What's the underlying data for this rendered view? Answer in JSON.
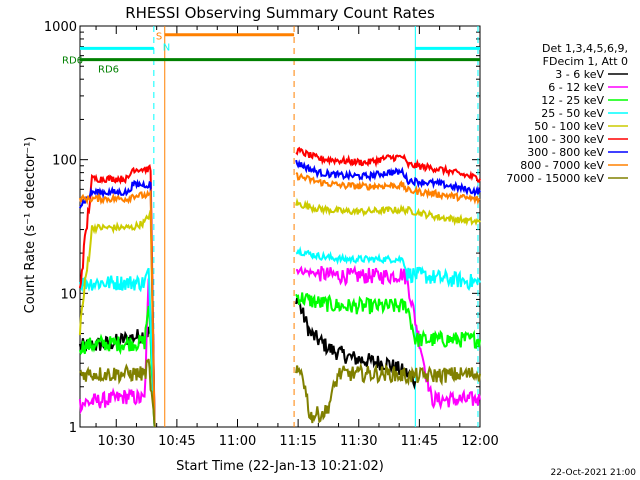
{
  "chart_data": {
    "type": "line",
    "title": "RHESSI Observing Summary Count Rates",
    "xlabel": "Start Time (22-Jan-13 10:21:02)",
    "ylabel": "Count Rate (s⁻¹ detector⁻¹)",
    "ylim": [
      1,
      1000
    ],
    "yscale": "log",
    "xlim_minutes": [
      21.03,
      120
    ],
    "x_ticks": [
      {
        "value": 30,
        "label": "10:30"
      },
      {
        "value": 45,
        "label": "10:45"
      },
      {
        "value": 60,
        "label": "11:00"
      },
      {
        "value": 75,
        "label": "11:15"
      },
      {
        "value": 90,
        "label": "11:30"
      },
      {
        "value": 105,
        "label": "11:45"
      },
      {
        "value": 120,
        "label": "12:00"
      }
    ],
    "y_ticks": [
      {
        "value": 1,
        "label": "1"
      },
      {
        "value": 10,
        "label": "10"
      },
      {
        "value": 100,
        "label": "100"
      },
      {
        "value": 1000,
        "label": "1000"
      }
    ],
    "legend": {
      "placement": "right",
      "header": [
        "Det 1,3,4,5,6,9,",
        "FDecim 1, Att 0"
      ]
    },
    "footer_stamp": "22-Oct-2021 21:00",
    "series": [
      {
        "name": "3 - 6 keV",
        "color": "#000000",
        "segments": [
          [
            [
              21.0,
              4.0
            ],
            [
              28,
              4.2
            ],
            [
              33,
              4.6
            ],
            [
              37,
              4.9
            ],
            [
              38.5,
              5.3
            ],
            [
              39.5,
              1.0
            ]
          ],
          [
            [
              74.5,
              9.5
            ],
            [
              78,
              5.0
            ],
            [
              83,
              3.8
            ],
            [
              88,
              3.3
            ],
            [
              93,
              3.1
            ],
            [
              97,
              3.0
            ],
            [
              102,
              2.5
            ],
            [
              104,
              2.2
            ]
          ]
        ]
      },
      {
        "name": "6 - 12 keV",
        "color": "#ff00ff",
        "segments": [
          [
            [
              21.0,
              1.5
            ],
            [
              28,
              1.6
            ],
            [
              33,
              1.7
            ],
            [
              37,
              1.6
            ],
            [
              38,
              12.0
            ],
            [
              39.5,
              1.0
            ]
          ],
          [
            [
              74.5,
              15.0
            ],
            [
              80,
              14.0
            ],
            [
              86,
              13.5
            ],
            [
              92,
              13.5
            ],
            [
              98,
              13.5
            ],
            [
              101,
              14.0
            ],
            [
              102,
              12.5
            ],
            [
              108,
              1.6
            ],
            [
              120,
              1.6
            ]
          ]
        ]
      },
      {
        "name": "12 - 25 keV",
        "color": "#00ff00",
        "segments": [
          [
            [
              21.0,
              4.0
            ],
            [
              26,
              4.2
            ],
            [
              32,
              4.2
            ],
            [
              37,
              4.3
            ],
            [
              38,
              8.5
            ],
            [
              39.5,
              1.0
            ]
          ],
          [
            [
              74.5,
              9.5
            ],
            [
              80,
              8.5
            ],
            [
              86,
              8.0
            ],
            [
              92,
              8.0
            ],
            [
              98,
              8.0
            ],
            [
              102,
              8.0
            ],
            [
              104,
              4.5
            ],
            [
              110,
              4.5
            ],
            [
              120,
              4.5
            ]
          ]
        ]
      },
      {
        "name": "25 - 50 keV",
        "color": "#00ffff",
        "segments": [
          [
            [
              21.0,
              12.0
            ],
            [
              26,
              12.0
            ],
            [
              32,
              12.0
            ],
            [
              37,
              12.0
            ],
            [
              38,
              15.0
            ],
            [
              39.5,
              1.0
            ]
          ],
          [
            [
              74.5,
              21.0
            ],
            [
              80,
              19.0
            ],
            [
              86,
              18.0
            ],
            [
              92,
              18.0
            ],
            [
              98,
              18.0
            ],
            [
              101,
              18.0
            ],
            [
              102,
              14.0
            ],
            [
              110,
              13.0
            ],
            [
              120,
              12.0
            ]
          ]
        ]
      },
      {
        "name": "50 - 100 keV",
        "color": "#cccc00",
        "segments": [
          [
            [
              21.0,
              5.5
            ],
            [
              24,
              31.0
            ],
            [
              30,
              31.0
            ],
            [
              34,
              31.0
            ],
            [
              37,
              34.0
            ],
            [
              38.5,
              40.0
            ],
            [
              39.5,
              1.0
            ]
          ],
          [
            [
              74.5,
              47.0
            ],
            [
              80,
              43.0
            ],
            [
              86,
              41.0
            ],
            [
              92,
              41.0
            ],
            [
              98,
              42.0
            ],
            [
              102,
              42.0
            ],
            [
              110,
              37.0
            ],
            [
              120,
              34.0
            ]
          ]
        ]
      },
      {
        "name": "100 - 300 keV",
        "color": "#ff0000",
        "segments": [
          [
            [
              21.0,
              11.0
            ],
            [
              24,
              72.0
            ],
            [
              30,
              72.0
            ],
            [
              33,
              72.0
            ],
            [
              34,
              85.0
            ],
            [
              38.5,
              85.0
            ],
            [
              39.5,
              1.0
            ]
          ],
          [
            [
              74.5,
              118.0
            ],
            [
              80,
              102.0
            ],
            [
              86,
              98.0
            ],
            [
              92,
              95.0
            ],
            [
              97,
              103.0
            ],
            [
              101,
              105.0
            ],
            [
              102,
              92.0
            ],
            [
              110,
              85.0
            ],
            [
              120,
              72.0
            ]
          ]
        ]
      },
      {
        "name": "300 - 800 keV",
        "color": "#0000ff",
        "segments": [
          [
            [
              21.0,
              45.0
            ],
            [
              24,
              57.0
            ],
            [
              30,
              57.0
            ],
            [
              33,
              57.0
            ],
            [
              34,
              65.0
            ],
            [
              38.5,
              65.0
            ],
            [
              39.5,
              1.0
            ]
          ],
          [
            [
              74.5,
              95.0
            ],
            [
              80,
              80.0
            ],
            [
              86,
              76.0
            ],
            [
              92,
              75.0
            ],
            [
              97,
              80.0
            ],
            [
              101,
              81.0
            ],
            [
              102,
              70.0
            ],
            [
              110,
              66.0
            ],
            [
              120,
              57.0
            ]
          ]
        ]
      },
      {
        "name": "800 - 7000 keV",
        "color": "#ff8000",
        "segments": [
          [
            [
              21.0,
              51.0
            ],
            [
              24,
              51.0
            ],
            [
              30,
              51.0
            ],
            [
              33,
              51.0
            ],
            [
              34,
              54.0
            ],
            [
              38.5,
              54.0
            ],
            [
              39.5,
              1.0
            ]
          ],
          [
            [
              74.5,
              76.0
            ],
            [
              80,
              68.0
            ],
            [
              86,
              64.0
            ],
            [
              92,
              63.0
            ],
            [
              97,
              64.0
            ],
            [
              101,
              64.0
            ],
            [
              102,
              59.0
            ],
            [
              110,
              55.0
            ],
            [
              120,
              50.0
            ]
          ]
        ]
      },
      {
        "name": "7000 - 15000 keV",
        "color": "#808000",
        "segments": [
          [
            [
              21.0,
              2.5
            ],
            [
              28,
              2.5
            ],
            [
              33,
              2.5
            ],
            [
              37,
              2.5
            ],
            [
              38,
              3.0
            ],
            [
              39.5,
              1.0
            ]
          ],
          [
            [
              74.5,
              2.5
            ],
            [
              76,
              2.6
            ],
            [
              78,
              1.2
            ],
            [
              82,
              1.3
            ],
            [
              85,
              2.5
            ],
            [
              92,
              2.5
            ],
            [
              98,
              2.5
            ],
            [
              102,
              2.4
            ],
            [
              120,
              2.5
            ]
          ]
        ]
      }
    ],
    "flags": [
      {
        "label": "S",
        "color": "#ff8000",
        "x_start": 39.3,
        "x_end": 39.3,
        "level": 850
      },
      {
        "label": "N",
        "color": "#00ffff",
        "x_start": 41.0,
        "x_end": 41.0,
        "level": 700
      },
      {
        "label": "",
        "color": "#00ffff",
        "x_start": 21.03,
        "x_end": 39.3,
        "level": 680
      },
      {
        "label": "",
        "color": "#00ffff",
        "x_start": 104.0,
        "x_end": 120.0,
        "level": 680
      },
      {
        "label": "",
        "color": "#ff8000",
        "x_start": 42.0,
        "x_end": 74.0,
        "level": 860
      },
      {
        "label": "RD6",
        "color": "#008000",
        "x_start": 21.03,
        "x_end": 120.0,
        "level": 560
      },
      {
        "label": "RD6",
        "color": "#008000",
        "x_start": 25.0,
        "x_end": 25.0,
        "level": 480
      }
    ],
    "vertical_lines": [
      {
        "x": 39.3,
        "color": "#00ffff",
        "style": "dashed"
      },
      {
        "x": 42.0,
        "color": "#ff8000",
        "style": "solid"
      },
      {
        "x": 74.0,
        "color": "#ff8000",
        "style": "dashed"
      },
      {
        "x": 104.0,
        "color": "#00ffff",
        "style": "solid"
      },
      {
        "x": 119.5,
        "color": "#00ffff",
        "style": "dashed"
      }
    ]
  }
}
